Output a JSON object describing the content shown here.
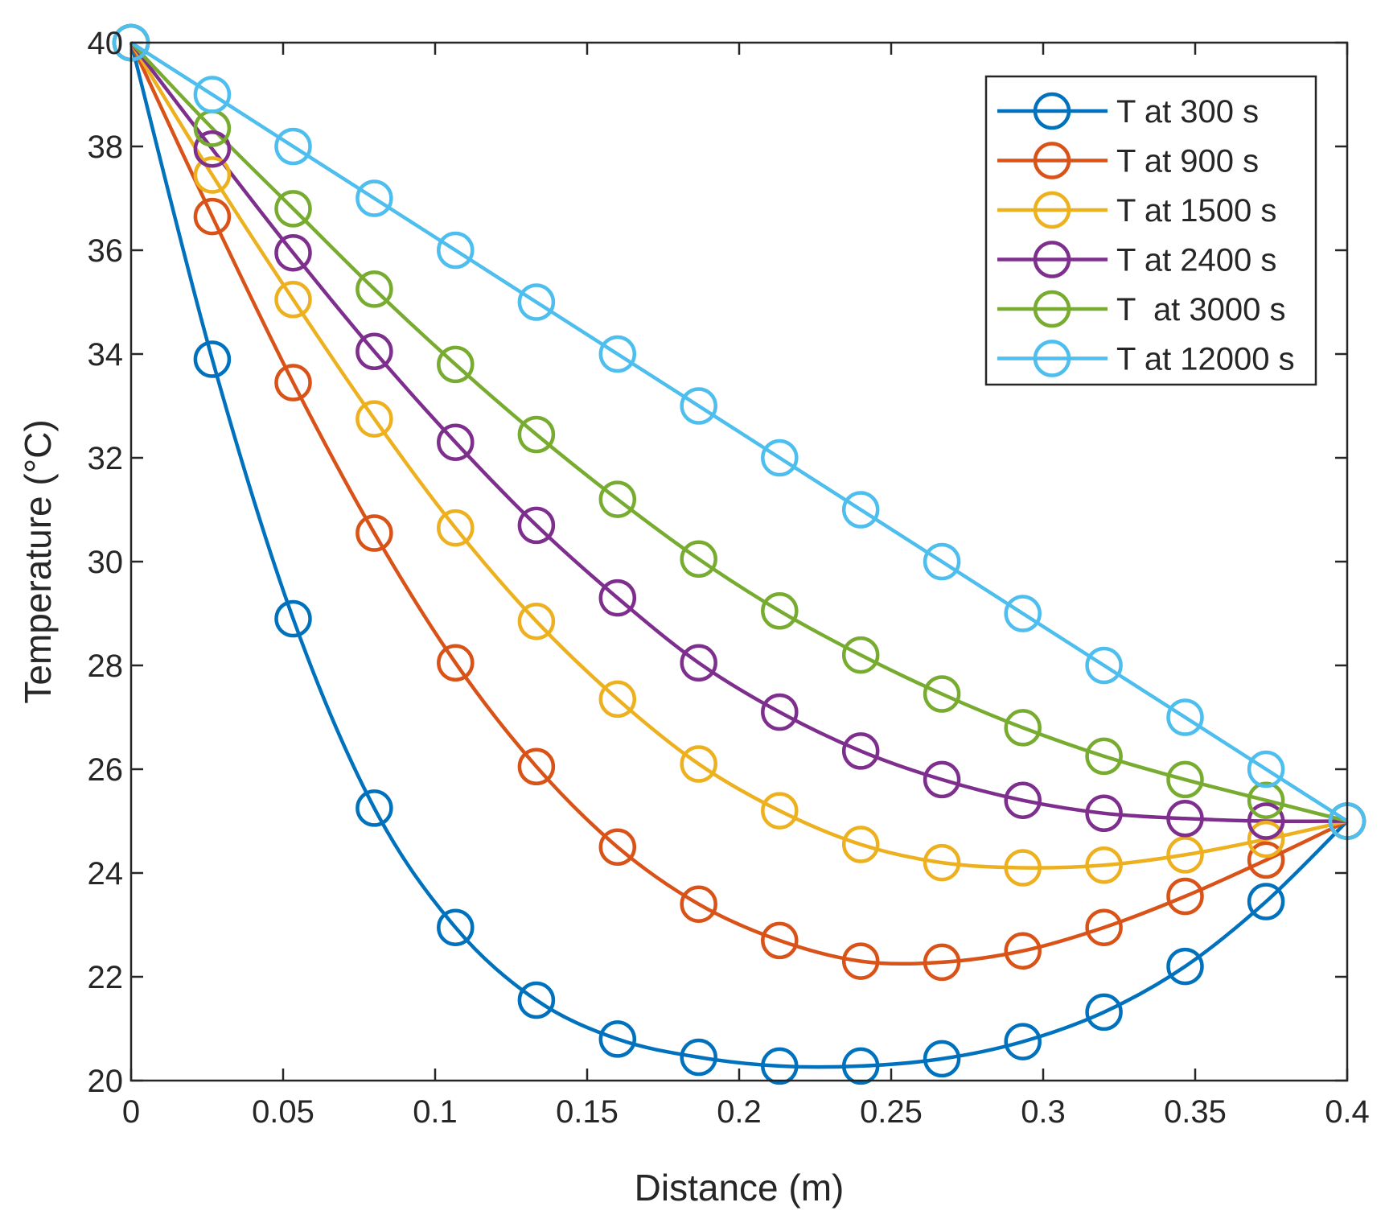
{
  "chart_data": {
    "type": "line",
    "xlabel": "Distance (m)",
    "ylabel": "Temperature (°C)",
    "xlim": [
      0,
      0.4
    ],
    "ylim": [
      20,
      40
    ],
    "xticks": [
      0,
      0.05,
      0.1,
      0.15,
      0.2,
      0.25,
      0.3,
      0.35,
      0.4
    ],
    "xtick_labels": [
      "0",
      "0.05",
      "0.1",
      "0.15",
      "0.2",
      "0.25",
      "0.3",
      "0.35",
      "0.4"
    ],
    "yticks": [
      20,
      22,
      24,
      26,
      28,
      30,
      32,
      34,
      36,
      38,
      40
    ],
    "ytick_labels": [
      "20",
      "22",
      "24",
      "26",
      "28",
      "30",
      "32",
      "34",
      "36",
      "38",
      "40"
    ],
    "grid": false,
    "legend_position": "top-right",
    "marker": "circle",
    "x": [
      0,
      0.0267,
      0.0533,
      0.08,
      0.1067,
      0.1333,
      0.16,
      0.1867,
      0.2133,
      0.24,
      0.2667,
      0.2933,
      0.32,
      0.3467,
      0.3733,
      0.4
    ],
    "series": [
      {
        "name": "T at 300 s",
        "color": "#0072BD",
        "values": [
          40,
          33.9,
          28.9,
          25.25,
          22.95,
          21.55,
          20.8,
          20.45,
          20.28,
          20.28,
          20.42,
          20.75,
          21.32,
          22.2,
          23.45,
          25
        ]
      },
      {
        "name": "T at 900 s",
        "color": "#D95319",
        "values": [
          40,
          36.65,
          33.45,
          30.55,
          28.05,
          26.05,
          24.5,
          23.4,
          22.7,
          22.3,
          22.28,
          22.5,
          22.95,
          23.55,
          24.25,
          25
        ]
      },
      {
        "name": "T at 1500 s",
        "color": "#EDB120",
        "values": [
          40,
          37.45,
          35.05,
          32.75,
          30.65,
          28.85,
          27.35,
          26.1,
          25.2,
          24.55,
          24.2,
          24.1,
          24.15,
          24.35,
          24.65,
          25
        ]
      },
      {
        "name": "T at 2400 s",
        "color": "#7E2F8E",
        "values": [
          40,
          37.95,
          35.95,
          34.05,
          32.3,
          30.7,
          29.3,
          28.05,
          27.1,
          26.35,
          25.8,
          25.4,
          25.15,
          25.05,
          25.0,
          25
        ]
      },
      {
        "name": "T  at 3000 s",
        "color": "#77AC30",
        "values": [
          40,
          38.35,
          36.8,
          35.25,
          33.8,
          32.45,
          31.2,
          30.05,
          29.05,
          28.2,
          27.45,
          26.8,
          26.25,
          25.8,
          25.4,
          25
        ]
      },
      {
        "name": "T at 12000 s",
        "color": "#4DBEEE",
        "values": [
          40,
          39,
          38,
          37,
          36,
          35,
          34,
          33,
          32,
          31,
          30,
          29,
          28,
          27,
          26,
          25
        ]
      }
    ]
  }
}
